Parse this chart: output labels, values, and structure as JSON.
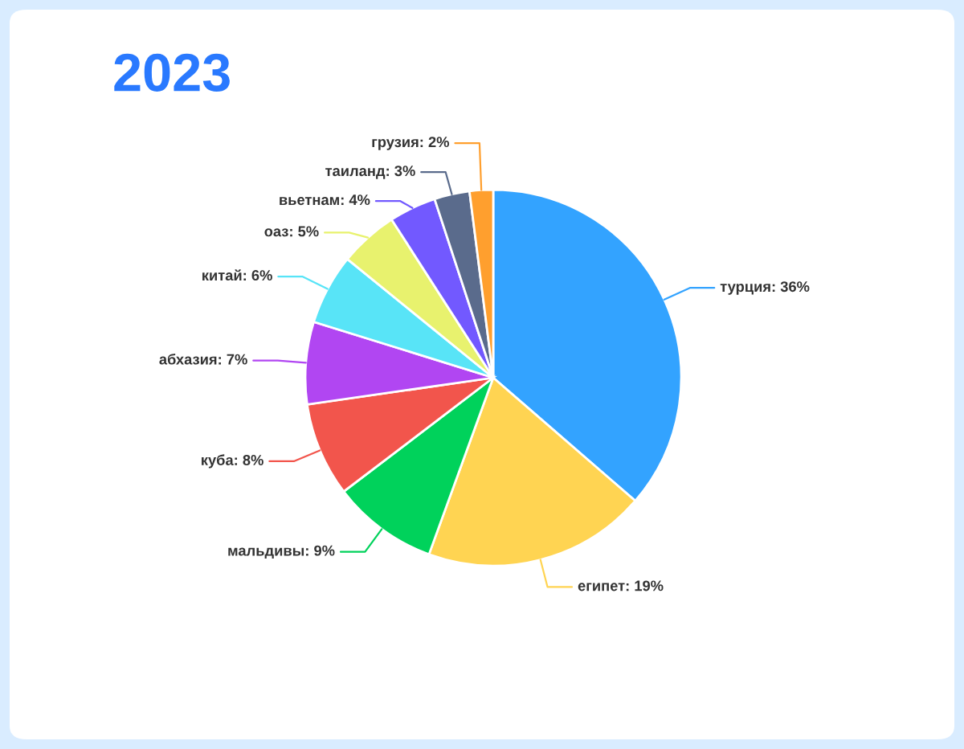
{
  "chart_data": {
    "type": "pie",
    "title": "2023",
    "categories": [
      "турция",
      "египет",
      "мальдивы",
      "куба",
      "абхазия",
      "китай",
      "оаз",
      "вьетнам",
      "таиланд",
      "грузия"
    ],
    "values": [
      36,
      19,
      9,
      8,
      7,
      6,
      5,
      4,
      3,
      2
    ],
    "colors": [
      "#33a3ff",
      "#ffd452",
      "#00d25b",
      "#f2554c",
      "#b146f2",
      "#58e4f7",
      "#e8f26e",
      "#7259ff",
      "#5a6b8c",
      "#ff9f2e"
    ],
    "value_labels": [
      "36%",
      "19%",
      "9%",
      "8%",
      "7%",
      "6%",
      "5%",
      "4%",
      "3%",
      "2%"
    ]
  }
}
